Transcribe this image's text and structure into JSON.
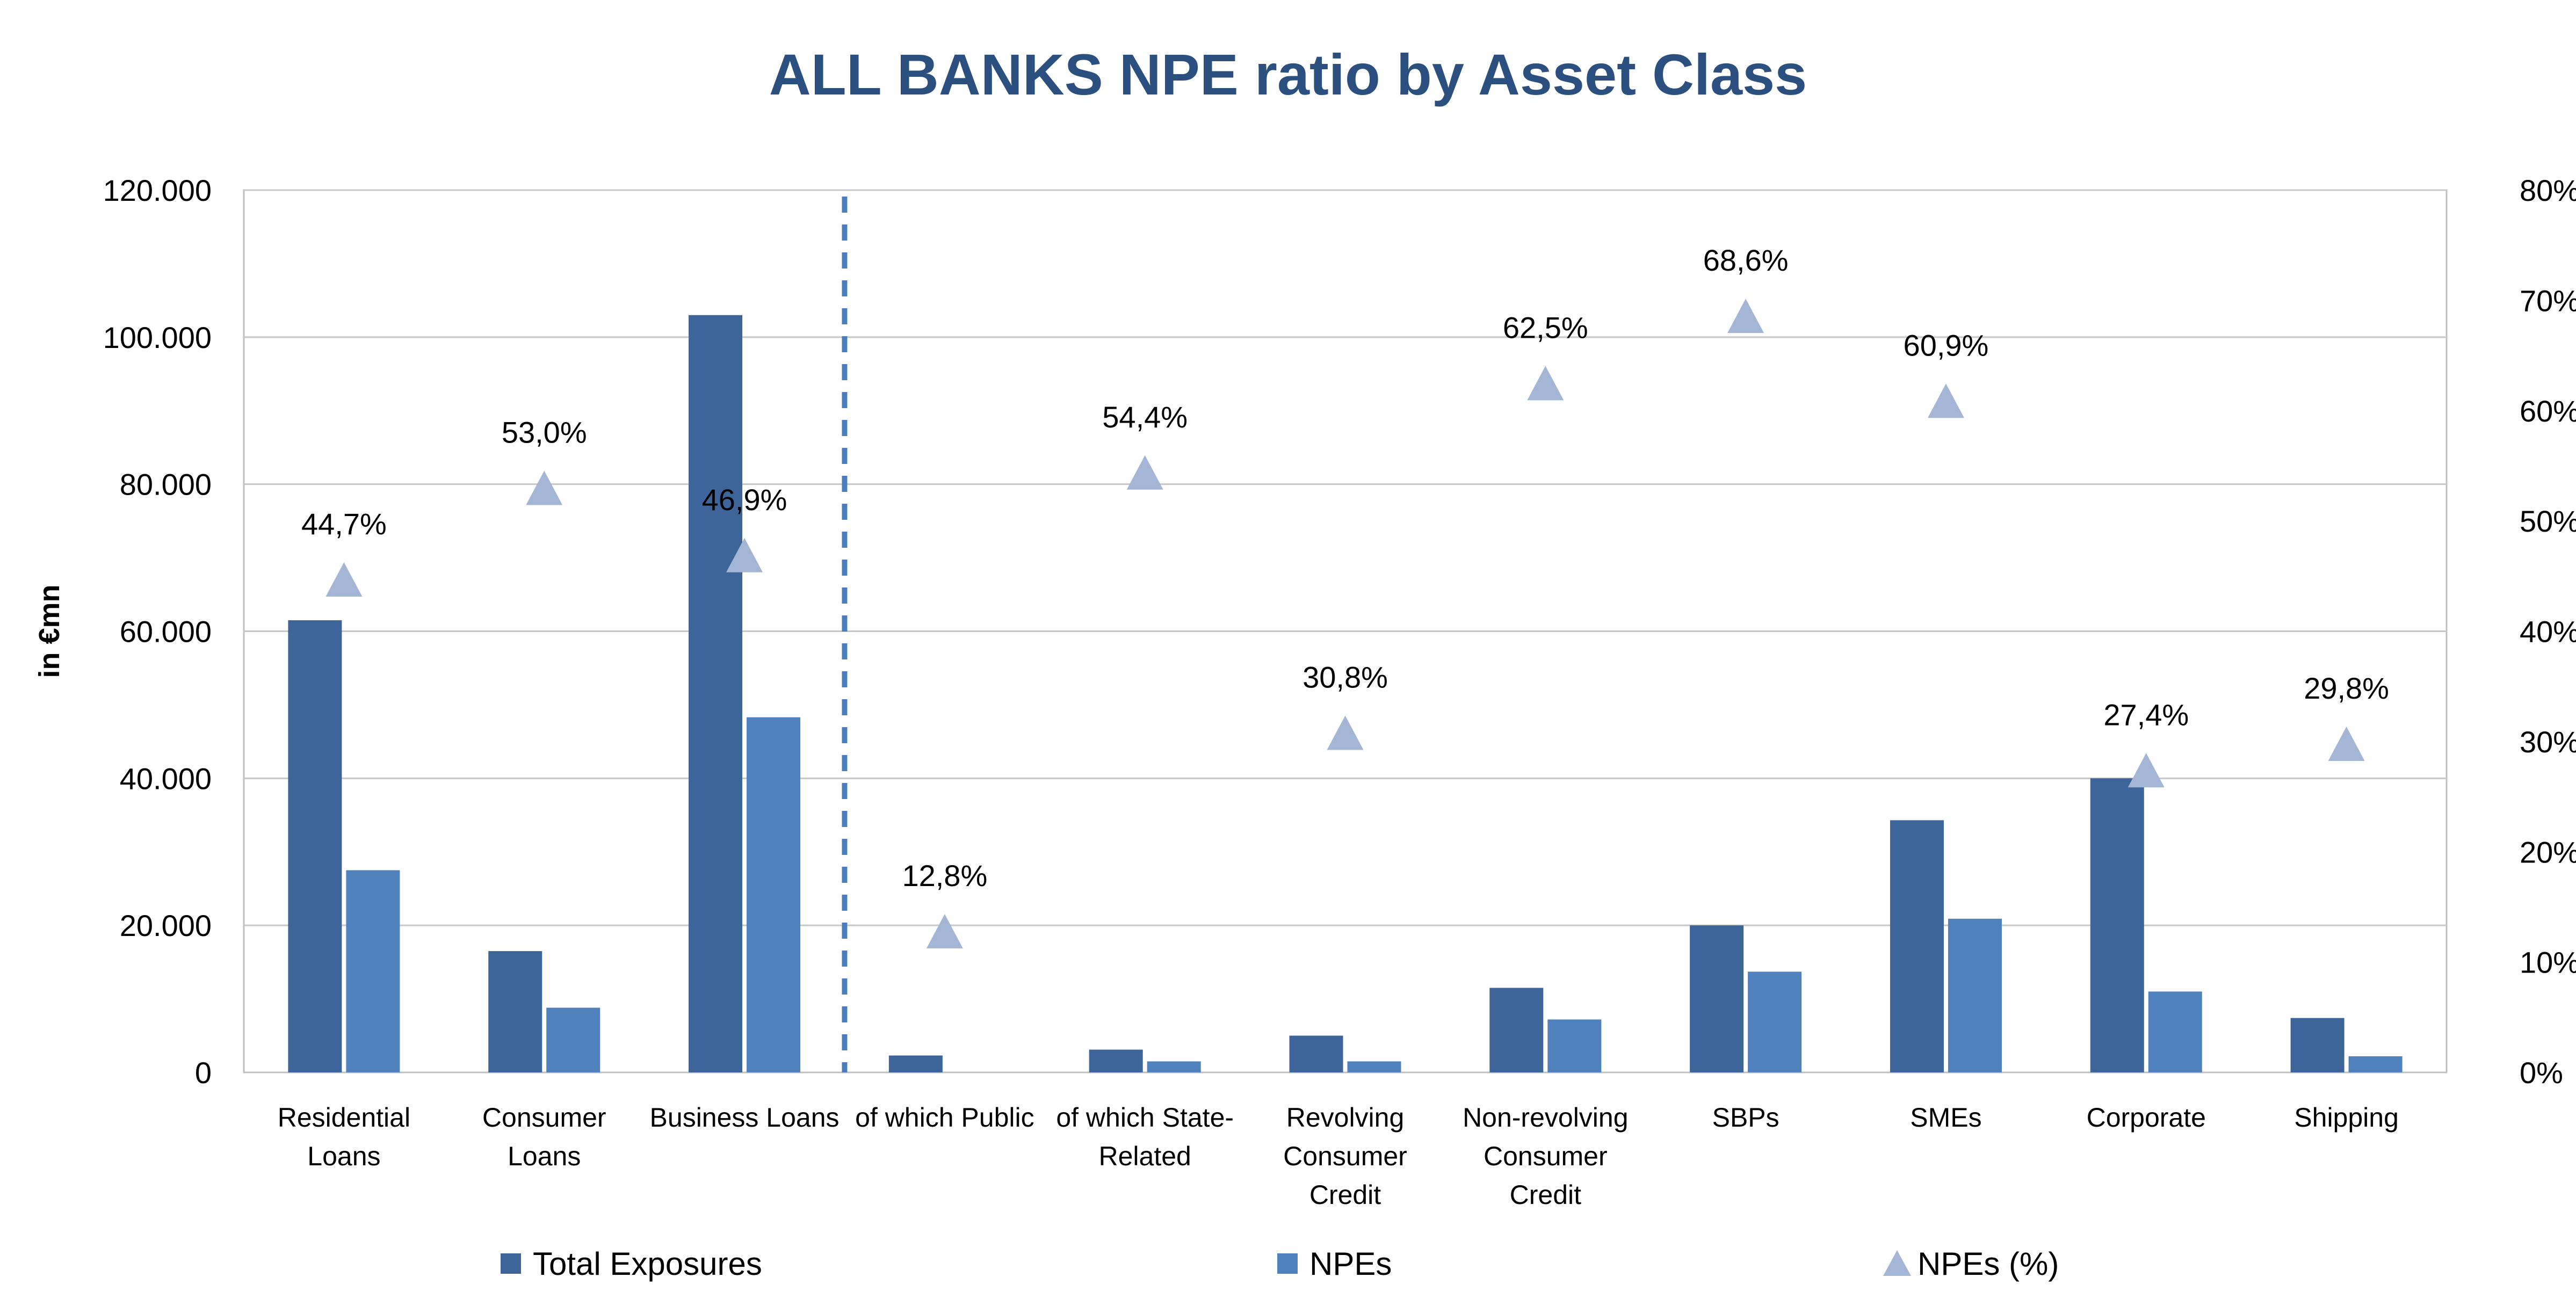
{
  "chart_data": {
    "type": "bar",
    "title": "ALL BANKS NPE ratio by Asset Class",
    "ylabel": "in €mn",
    "ylim": [
      0,
      120000
    ],
    "y2lim": [
      0,
      80
    ],
    "y_ticks": [
      "0",
      "20.000",
      "40.000",
      "60.000",
      "80.000",
      "100.000",
      "120.000"
    ],
    "y2_ticks": [
      "0%",
      "10%",
      "20%",
      "30%",
      "40%",
      "50%",
      "60%",
      "70%",
      "80%"
    ],
    "grid": true,
    "legend_position": "bottom",
    "separator_after_category": 3,
    "categories": [
      [
        "Residential",
        "Loans"
      ],
      [
        "Consumer",
        "Loans"
      ],
      [
        "Business Loans"
      ],
      [
        "of which Public"
      ],
      [
        "of which State-",
        "Related"
      ],
      [
        "Revolving",
        "Consumer",
        "Credit"
      ],
      [
        "Non-revolving",
        "Consumer",
        "Credit"
      ],
      [
        "SBPs"
      ],
      [
        "SMEs"
      ],
      [
        "Corporate"
      ],
      [
        "Shipping"
      ]
    ],
    "series": [
      {
        "name": "Total Exposures",
        "axis": "left",
        "type": "bar",
        "color": "#3d659a",
        "values": [
          61500,
          16500,
          103000,
          2300,
          3100,
          5000,
          11500,
          20000,
          34300,
          40000,
          7400
        ]
      },
      {
        "name": "NPEs",
        "axis": "left",
        "type": "bar",
        "color": "#4f81bd",
        "values": [
          27500,
          8800,
          48300,
          0,
          1500,
          1500,
          7200,
          13700,
          20900,
          11000,
          2200
        ]
      },
      {
        "name": "NPEs (%)",
        "axis": "right",
        "type": "marker",
        "marker": "triangle",
        "color": "#a4b6d6",
        "values": [
          44.7,
          53.0,
          46.9,
          12.8,
          54.4,
          30.8,
          62.5,
          68.6,
          60.9,
          27.4,
          29.8
        ],
        "labels": [
          "44,7%",
          "53,0%",
          "46,9%",
          "12,8%",
          "54,4%",
          "30,8%",
          "62,5%",
          "68,6%",
          "60,9%",
          "27,4%",
          "29,8%"
        ]
      }
    ]
  }
}
